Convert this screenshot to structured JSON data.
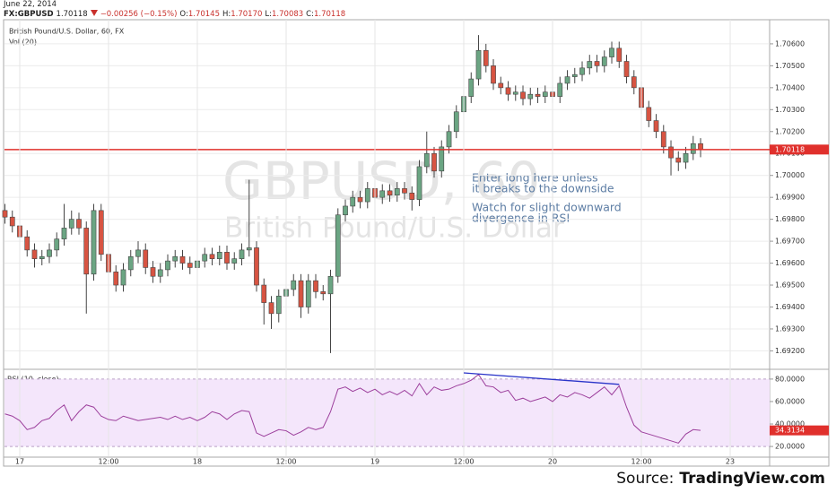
{
  "header": {
    "date": "June 22, 2014",
    "symbol": "FX:GBPUSD",
    "last": "1.70118",
    "change": "−0.00256 (−0.15%)",
    "ohlc": [
      {
        "label": "O:",
        "value": "1.70145"
      },
      {
        "label": "H:",
        "value": "1.70170"
      },
      {
        "label": "L:",
        "value": "1.70083"
      },
      {
        "label": "C:",
        "value": "1.70118"
      }
    ]
  },
  "source": {
    "prefix": "Source:",
    "site": "TradingView.com"
  },
  "chart_data": [
    {
      "type": "candlestick",
      "title": "British Pound/U.S. Dollar, 60, FX",
      "legend": "Vol (20)",
      "watermark": [
        "GBPUSD, 60",
        "British Pound/U.S. Dollar"
      ],
      "annotations": [
        [
          "Enter long here unless",
          "it breaks to the downside"
        ],
        [
          "Watch for slight downward",
          "divergence in RSI"
        ]
      ],
      "up_color": "#6ba583",
      "down_color": "#d75442",
      "x": [
        -2,
        -1,
        0,
        1,
        2,
        3,
        4,
        5,
        6,
        7,
        8,
        9,
        10,
        11,
        12,
        13,
        14,
        15,
        16,
        17,
        18,
        19,
        20,
        21,
        22,
        23,
        24,
        25,
        26,
        27,
        28,
        29,
        30,
        31,
        32,
        33,
        34,
        35,
        36,
        37,
        38,
        39,
        40,
        41,
        42,
        43,
        44,
        45,
        46,
        47,
        48,
        49,
        50,
        51,
        52,
        53,
        54,
        55,
        56,
        57,
        58,
        59,
        60,
        61,
        62,
        63,
        64,
        65,
        66,
        67,
        68,
        69,
        70,
        71,
        72,
        73,
        74,
        75,
        76,
        77,
        78,
        79,
        80,
        81,
        82,
        83,
        84,
        85,
        86,
        87,
        88,
        89,
        90,
        91,
        92
      ],
      "open": [
        1.6984,
        1.6981,
        1.6977,
        1.6972,
        1.6966,
        1.6962,
        1.6963,
        1.6966,
        1.6971,
        1.6976,
        1.698,
        1.6976,
        1.6955,
        1.6984,
        1.6964,
        1.6956,
        1.695,
        1.6957,
        1.6963,
        1.6966,
        1.6958,
        1.6954,
        1.6957,
        1.6961,
        1.6963,
        1.696,
        1.6958,
        1.6961,
        1.6964,
        1.6962,
        1.6965,
        1.696,
        1.6962,
        1.6966,
        1.6967,
        1.695,
        1.6942,
        1.6937,
        1.6945,
        1.6948,
        1.6952,
        1.694,
        1.6952,
        1.6947,
        1.6946,
        1.6954,
        1.6982,
        1.6986,
        1.699,
        1.6988,
        1.6994,
        1.699,
        1.6993,
        1.6991,
        1.6994,
        1.6992,
        1.6989,
        1.7004,
        1.701,
        1.7002,
        1.7013,
        1.702,
        1.7029,
        1.7036,
        1.7044,
        1.7057,
        1.705,
        1.7042,
        1.704,
        1.7037,
        1.7038,
        1.7035,
        1.7037,
        1.7036,
        1.7038,
        1.7036,
        1.7042,
        1.7045,
        1.7046,
        1.7049,
        1.7052,
        1.705,
        1.7054,
        1.7058,
        1.7052,
        1.7045,
        1.704,
        1.7031,
        1.7025,
        1.702,
        1.7013,
        1.7008,
        1.7006,
        1.701,
        1.70145
      ],
      "high": [
        1.6987,
        1.6984,
        1.698,
        1.6975,
        1.6969,
        1.6966,
        1.6969,
        1.6974,
        1.6987,
        1.6984,
        1.6983,
        1.6979,
        1.6987,
        1.6987,
        1.6967,
        1.6959,
        1.696,
        1.6966,
        1.697,
        1.6969,
        1.6961,
        1.696,
        1.6964,
        1.6966,
        1.6966,
        1.6963,
        1.6964,
        1.6967,
        1.6967,
        1.6968,
        1.6968,
        1.6965,
        1.6969,
        1.6998,
        1.697,
        1.6953,
        1.6945,
        1.6948,
        1.6951,
        1.6955,
        1.6955,
        1.6955,
        1.6955,
        1.695,
        1.6957,
        1.6985,
        1.6989,
        1.6993,
        1.6993,
        1.6997,
        1.6997,
        1.6996,
        1.6996,
        1.6997,
        1.6997,
        1.6995,
        1.7007,
        1.702,
        1.7013,
        1.7016,
        1.7023,
        1.7032,
        1.7039,
        1.7047,
        1.7064,
        1.706,
        1.7053,
        1.7045,
        1.7043,
        1.7041,
        1.7041,
        1.704,
        1.704,
        1.7041,
        1.7041,
        1.7045,
        1.7048,
        1.7049,
        1.7052,
        1.7055,
        1.7055,
        1.7057,
        1.7061,
        1.7061,
        1.7055,
        1.7048,
        1.7043,
        1.7034,
        1.7028,
        1.7023,
        1.7016,
        1.7011,
        1.7013,
        1.7018,
        1.7017
      ],
      "low": [
        1.6978,
        1.6974,
        1.6969,
        1.6963,
        1.6958,
        1.6959,
        1.696,
        1.6963,
        1.6968,
        1.6973,
        1.6973,
        1.6937,
        1.6952,
        1.6961,
        1.6953,
        1.6947,
        1.6947,
        1.6954,
        1.696,
        1.6955,
        1.6951,
        1.6951,
        1.6954,
        1.6958,
        1.6957,
        1.6955,
        1.6955,
        1.6958,
        1.6959,
        1.6959,
        1.6957,
        1.6957,
        1.6959,
        1.6963,
        1.6947,
        1.6932,
        1.693,
        1.6933,
        1.6942,
        1.6945,
        1.6935,
        1.6937,
        1.6944,
        1.6943,
        1.6919,
        1.6951,
        1.6979,
        1.6983,
        1.6985,
        1.6985,
        1.6987,
        1.6987,
        1.6988,
        1.6988,
        1.6989,
        1.6984,
        1.6986,
        1.7001,
        1.6999,
        1.6999,
        1.701,
        1.7017,
        1.7026,
        1.7033,
        1.7041,
        1.7047,
        1.7039,
        1.7037,
        1.7034,
        1.7034,
        1.7032,
        1.7032,
        1.7033,
        1.7033,
        1.7033,
        1.7033,
        1.7039,
        1.7042,
        1.7043,
        1.7046,
        1.7047,
        1.7047,
        1.7051,
        1.7049,
        1.7042,
        1.7037,
        1.7028,
        1.7022,
        1.7017,
        1.701,
        1.7,
        1.7002,
        1.7003,
        1.7007,
        1.70083
      ],
      "close": [
        1.6981,
        1.6977,
        1.6972,
        1.6966,
        1.6962,
        1.6963,
        1.6966,
        1.6971,
        1.6976,
        1.698,
        1.6976,
        1.6955,
        1.6984,
        1.6964,
        1.6956,
        1.695,
        1.6957,
        1.6963,
        1.6966,
        1.6958,
        1.6954,
        1.6957,
        1.6961,
        1.6963,
        1.696,
        1.6958,
        1.6961,
        1.6964,
        1.6962,
        1.6965,
        1.696,
        1.6962,
        1.6966,
        1.6967,
        1.695,
        1.6942,
        1.6937,
        1.6945,
        1.6948,
        1.6952,
        1.694,
        1.6952,
        1.6947,
        1.6946,
        1.6954,
        1.6982,
        1.6986,
        1.699,
        1.6988,
        1.6994,
        1.699,
        1.6993,
        1.6991,
        1.6994,
        1.6992,
        1.6989,
        1.7004,
        1.701,
        1.7002,
        1.7013,
        1.702,
        1.7029,
        1.7036,
        1.7044,
        1.7057,
        1.705,
        1.7042,
        1.704,
        1.7037,
        1.7038,
        1.7035,
        1.7037,
        1.7036,
        1.7038,
        1.7036,
        1.7042,
        1.7045,
        1.7046,
        1.7049,
        1.7052,
        1.705,
        1.7054,
        1.7058,
        1.7052,
        1.7045,
        1.704,
        1.7031,
        1.7025,
        1.702,
        1.7013,
        1.7008,
        1.7006,
        1.701,
        1.70145,
        1.70118
      ],
      "last_price": {
        "value": 1.70118,
        "label": "1.70118"
      },
      "last_color": "#e0302c",
      "xlim": [
        -2.06,
        101.33
      ],
      "ylim": [
        1.6912,
        1.7071
      ],
      "yticks": [
        {
          "value": 1.692,
          "label": "1.69200"
        },
        {
          "value": 1.693,
          "label": "1.69300"
        },
        {
          "value": 1.694,
          "label": "1.69400"
        },
        {
          "value": 1.695,
          "label": "1.69500"
        },
        {
          "value": 1.696,
          "label": "1.69600"
        },
        {
          "value": 1.697,
          "label": "1.69700"
        },
        {
          "value": 1.698,
          "label": "1.69800"
        },
        {
          "value": 1.699,
          "label": "1.69900"
        },
        {
          "value": 1.7,
          "label": "1.70000"
        },
        {
          "value": 1.701,
          "label": "1.70100"
        },
        {
          "value": 1.702,
          "label": "1.70200"
        },
        {
          "value": 1.703,
          "label": "1.70300"
        },
        {
          "value": 1.704,
          "label": "1.70400"
        },
        {
          "value": 1.705,
          "label": "1.70500"
        },
        {
          "value": 1.706,
          "label": "1.70600"
        }
      ],
      "grid": true
    },
    {
      "type": "line",
      "title": "RSI (10, close)",
      "color": "#9c3f9c",
      "band": [
        20,
        80
      ],
      "band_color": "#f4e6fb",
      "x": [
        -2,
        -1,
        0,
        1,
        2,
        3,
        4,
        5,
        6,
        7,
        8,
        9,
        10,
        11,
        12,
        13,
        14,
        15,
        16,
        17,
        18,
        19,
        20,
        21,
        22,
        23,
        24,
        25,
        26,
        27,
        28,
        29,
        30,
        31,
        32,
        33,
        34,
        35,
        36,
        37,
        38,
        39,
        40,
        41,
        42,
        43,
        44,
        45,
        46,
        47,
        48,
        49,
        50,
        51,
        52,
        53,
        54,
        55,
        56,
        57,
        58,
        59,
        60,
        61,
        62,
        63,
        64,
        65,
        66,
        67,
        68,
        69,
        70,
        71,
        72,
        73,
        74,
        75,
        76,
        77,
        78,
        79,
        80,
        81,
        82,
        83,
        84,
        85,
        86,
        87,
        88,
        89,
        90,
        91,
        92
      ],
      "values": [
        49,
        47,
        43,
        35,
        37,
        43,
        45,
        52,
        57,
        43,
        51,
        57,
        55,
        47,
        44,
        43,
        47,
        45,
        43,
        44,
        45,
        46,
        44,
        47,
        44,
        46,
        43,
        46,
        51,
        49,
        44,
        49,
        52,
        51,
        32,
        29,
        32,
        35,
        34,
        30,
        33,
        37,
        35,
        37,
        51,
        71,
        73,
        69,
        72,
        68,
        71,
        66,
        69,
        66,
        70,
        65,
        76,
        66,
        73,
        70,
        71,
        74,
        76,
        79,
        84,
        74,
        73,
        68,
        70,
        61,
        63,
        60,
        62,
        64,
        60,
        66,
        64,
        68,
        66,
        63,
        68,
        73,
        66,
        74,
        55,
        39,
        33,
        31,
        29,
        27,
        25,
        23,
        31,
        35,
        34.3134
      ],
      "last": {
        "value": 34.3134,
        "label": "34.3134"
      },
      "last_color": "#e0302c",
      "trendline": {
        "x": [
          60,
          81
        ],
        "y": [
          85.5,
          75.3
        ],
        "color": "#2b35c9"
      },
      "xlim": [
        -2.06,
        101.33
      ],
      "ylim": [
        11.3,
        87.9
      ],
      "xticks": [
        {
          "value": 0,
          "label": "17"
        },
        {
          "value": 12,
          "label": "12:00"
        },
        {
          "value": 24,
          "label": "18"
        },
        {
          "value": 36,
          "label": "12:00"
        },
        {
          "value": 48,
          "label": "19"
        },
        {
          "value": 60,
          "label": "12:00"
        },
        {
          "value": 72,
          "label": "20"
        },
        {
          "value": 84,
          "label": "12:00"
        },
        {
          "value": 96,
          "label": "23"
        }
      ],
      "yticks": [
        {
          "value": 20,
          "label": "20.0000"
        },
        {
          "value": 40,
          "label": "40.0000"
        },
        {
          "value": 60,
          "label": "60.0000"
        },
        {
          "value": 80,
          "label": "80.0000"
        }
      ]
    }
  ]
}
